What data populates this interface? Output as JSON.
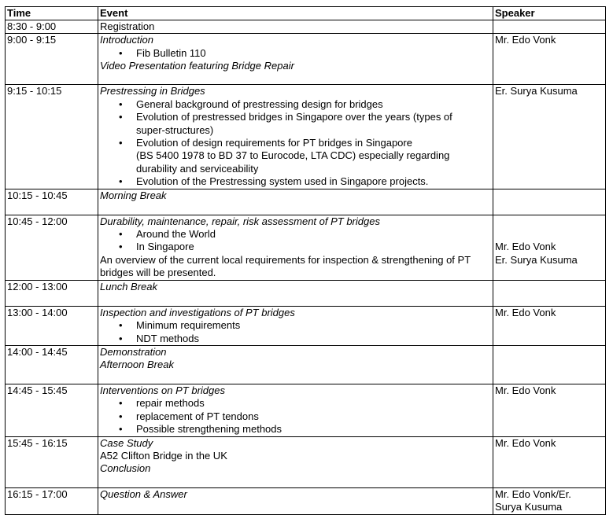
{
  "headers": {
    "time": "Time",
    "event": "Event",
    "speaker": "Speaker"
  },
  "rows": [
    {
      "time": "8:30 - 9:00",
      "h": 16,
      "event": [
        {
          "t": "n",
          "x": "Registration"
        }
      ],
      "speaker": []
    },
    {
      "time": "9:00 - 9:15",
      "h": 65,
      "event": [
        {
          "t": "i",
          "x": "Introduction"
        },
        {
          "t": "b",
          "x": "Fib Bulletin 110"
        },
        {
          "t": "i",
          "x": "Video Presentation featuring Bridge Repair"
        }
      ],
      "speaker": [
        "Mr. Edo Vonk"
      ]
    },
    {
      "time": "9:15 - 10:15",
      "h": 131,
      "event": [
        {
          "t": "i",
          "x": "Prestressing in Bridges"
        },
        {
          "t": "b",
          "x": "General background of prestressing design for bridges"
        },
        {
          "t": "b",
          "x": "Evolution of prestressed bridges in Singapore over the years (types of\nsuper-structures)"
        },
        {
          "t": "b",
          "x": "Evolution of design requirements for PT bridges in Singapore\n(BS 5400 1978 to BD 37 to Eurocode, LTA CDC) especially regarding\ndurability and serviceability"
        },
        {
          "t": "b",
          "x": "Evolution of the Prestressing system used in Singapore projects."
        }
      ],
      "speaker": [
        "Er. Surya Kusuma"
      ]
    },
    {
      "time": "10:15 - 10:45",
      "h": 33,
      "event": [
        {
          "t": "i",
          "x": "Morning Break"
        }
      ],
      "speaker": []
    },
    {
      "time": "10:45 - 12:00",
      "h": 82,
      "event": [
        {
          "t": "i",
          "x": "Durability, maintenance, repair, risk assessment of PT bridges"
        },
        {
          "t": "b",
          "x": "Around the World"
        },
        {
          "t": "b",
          "x": "In Singapore"
        },
        {
          "t": "n",
          "x": "An overview of the current local requirements for inspection & strengthening of PT\nbridges will be presented."
        }
      ],
      "speaker": [
        "",
        "",
        "Mr. Edo Vonk",
        "Er. Surya Kusuma"
      ]
    },
    {
      "time": "12:00 - 13:00",
      "h": 33,
      "event": [
        {
          "t": "i",
          "x": "Lunch Break"
        }
      ],
      "speaker": []
    },
    {
      "time": "13:00 - 14:00",
      "h": 49,
      "event": [
        {
          "t": "i",
          "x": "Inspection and investigations of PT bridges"
        },
        {
          "t": "b",
          "x": "Minimum requirements"
        },
        {
          "t": "b",
          "x": "NDT methods"
        }
      ],
      "speaker": [
        "Mr. Edo Vonk"
      ]
    },
    {
      "time": "14:00 - 14:45",
      "h": 49,
      "event": [
        {
          "t": "i",
          "x": "Demonstration"
        },
        {
          "t": "i",
          "x": "Afternoon Break"
        }
      ],
      "speaker": []
    },
    {
      "time": "14:45 - 15:45",
      "h": 66,
      "event": [
        {
          "t": "i",
          "x": "Interventions on PT bridges"
        },
        {
          "t": "b",
          "x": "repair methods"
        },
        {
          "t": "b",
          "x": "replacement of PT tendons"
        },
        {
          "t": "b",
          "x": "Possible strengthening methods"
        }
      ],
      "speaker": [
        "Mr. Edo Vonk"
      ]
    },
    {
      "time": "15:45 - 16:15",
      "h": 65,
      "event": [
        {
          "t": "i",
          "x": "Case Study"
        },
        {
          "t": "n",
          "x": "A52 Clifton Bridge in the UK"
        },
        {
          "t": "i",
          "x": "Conclusion"
        }
      ],
      "speaker": [
        "Mr. Edo Vonk"
      ]
    },
    {
      "time": "16:15 - 17:00",
      "h": 34,
      "event": [
        {
          "t": "i",
          "x": "Question & Answer"
        }
      ],
      "speaker": [
        "Mr. Edo Vonk/Er.\nSurya Kusuma"
      ]
    }
  ]
}
